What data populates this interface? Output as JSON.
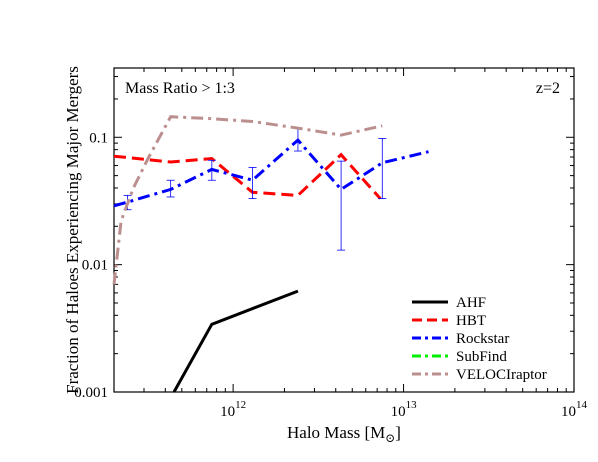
{
  "chart_data": {
    "type": "line",
    "xscale": "log",
    "yscale": "log",
    "xlim": [
      200000000000.0,
      100000000000000.0
    ],
    "ylim": [
      0.001,
      0.35
    ],
    "xlabel_main": "Halo Mass [M",
    "xlabel_sub": "⊙",
    "xlabel_end": "]",
    "ylabel": "Fraction of Haloes Experiencing Major Mergers",
    "x_ticks": [
      {
        "value": 1000000000000.0,
        "base": "10",
        "exp": "12"
      },
      {
        "value": 10000000000000.0,
        "base": "10",
        "exp": "13"
      },
      {
        "value": 100000000000000.0,
        "base": "10",
        "exp": "14"
      }
    ],
    "y_ticks": [
      {
        "value": 0.001,
        "label": "0.001"
      },
      {
        "value": 0.01,
        "label": "0.01"
      },
      {
        "value": 0.1,
        "label": "0.1"
      }
    ],
    "annotations": {
      "left": "Mass Ratio > 1:3",
      "right": "z=2"
    },
    "legend_position": "lower-right",
    "series": [
      {
        "name": "AHF",
        "color": "#000000",
        "dash": "solid",
        "points": [
          [
            450000000000.0,
            0.001
          ],
          [
            750000000000.0,
            0.0034
          ],
          [
            2400000000000.0,
            0.0062
          ]
        ]
      },
      {
        "name": "HBT",
        "color": "#ff0000",
        "dash": "dash",
        "points": [
          [
            200000000000.0,
            0.071
          ],
          [
            430000000000.0,
            0.064
          ],
          [
            750000000000.0,
            0.068
          ],
          [
            1300000000000.0,
            0.037
          ],
          [
            2400000000000.0,
            0.035
          ],
          [
            4300000000000.0,
            0.073
          ],
          [
            7300000000000.0,
            0.033
          ]
        ]
      },
      {
        "name": "Rockstar",
        "color": "#0000ff",
        "dash": "dashdot",
        "points": [
          [
            200000000000.0,
            0.029
          ],
          [
            240000000000.0,
            0.031
          ],
          [
            430000000000.0,
            0.039
          ],
          [
            750000000000.0,
            0.056
          ],
          [
            1300000000000.0,
            0.046
          ],
          [
            2400000000000.0,
            0.095
          ],
          [
            4300000000000.0,
            0.039
          ],
          [
            7500000000000.0,
            0.063
          ],
          [
            14000000000000.0,
            0.077
          ]
        ],
        "errorbars": [
          [
            240000000000.0,
            0.031,
            0.027,
            0.035
          ],
          [
            430000000000.0,
            0.039,
            0.034,
            0.046
          ],
          [
            750000000000.0,
            0.056,
            0.046,
            0.066
          ],
          [
            1300000000000.0,
            0.046,
            0.033,
            0.058
          ],
          [
            2400000000000.0,
            0.095,
            0.078,
            0.118
          ],
          [
            4300000000000.0,
            0.039,
            0.013,
            0.065
          ],
          [
            7500000000000.0,
            0.063,
            0.033,
            0.098
          ]
        ]
      },
      {
        "name": "SubFind",
        "color": "#00ee00",
        "dash": "dashdot",
        "points": []
      },
      {
        "name": "VELOCIraptor",
        "color": "#bc8f8f",
        "dash": "dashdot",
        "points": [
          [
            200000000000.0,
            0.007
          ],
          [
            220000000000.0,
            0.022
          ],
          [
            260000000000.0,
            0.04
          ],
          [
            320000000000.0,
            0.07
          ],
          [
            430000000000.0,
            0.145
          ],
          [
            750000000000.0,
            0.14
          ],
          [
            1300000000000.0,
            0.133
          ],
          [
            2400000000000.0,
            0.118
          ],
          [
            4300000000000.0,
            0.104
          ],
          [
            7500000000000.0,
            0.123
          ]
        ]
      }
    ]
  }
}
